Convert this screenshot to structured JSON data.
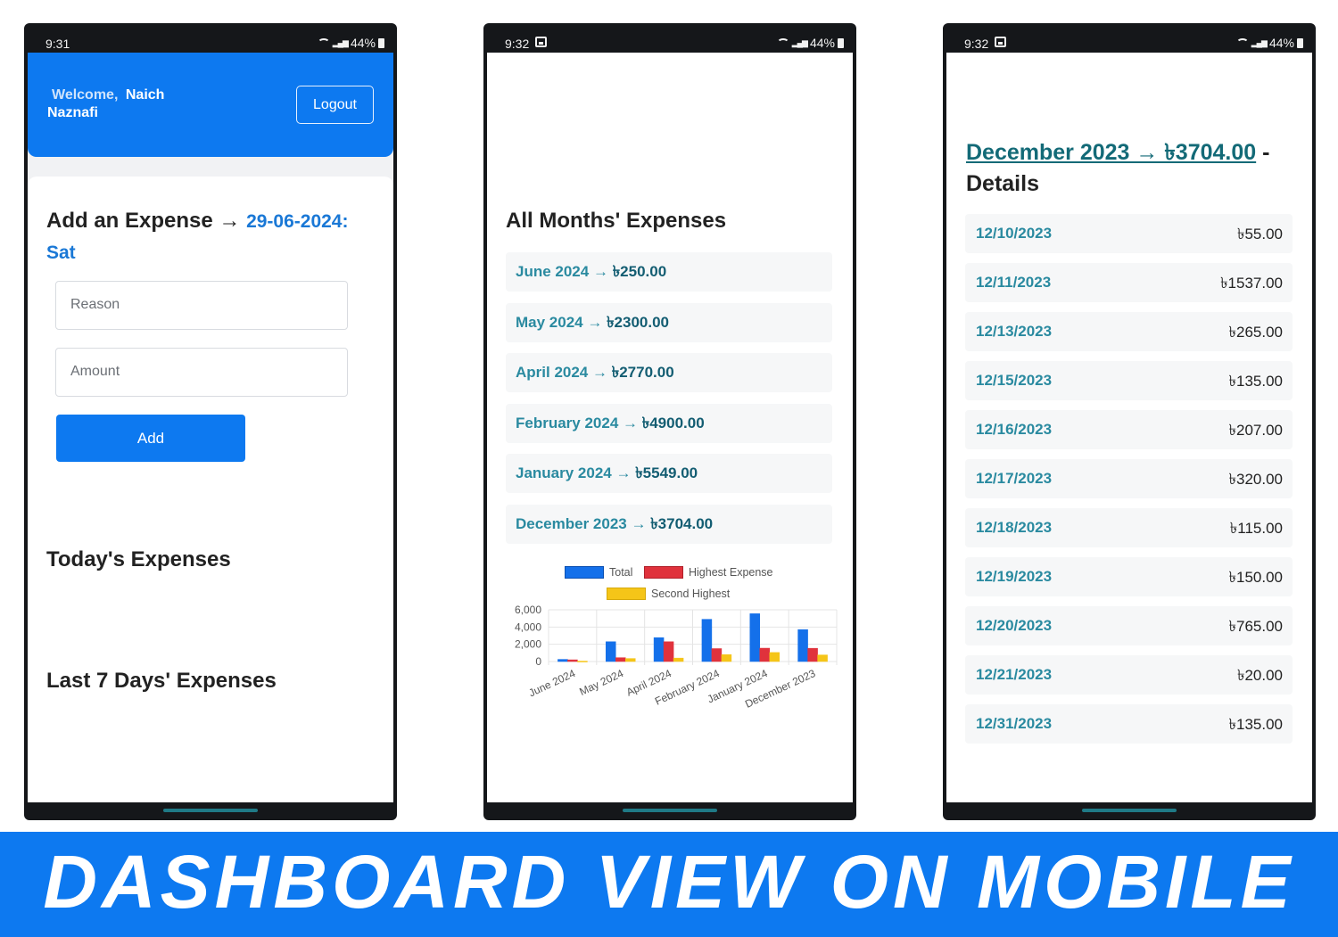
{
  "phone1": {
    "status": {
      "time": "9:31",
      "battery": "44%"
    },
    "header": {
      "welcome": "Welcome,",
      "name_line1": "Naich",
      "name_line2": "Naznafi",
      "logout_label": "Logout"
    },
    "add_expense": {
      "title": "Add an Expense →",
      "date": "29-06-2024: Sat",
      "reason_placeholder": "Reason",
      "amount_placeholder": "Amount",
      "add_label": "Add"
    },
    "today_title": "Today's Expenses",
    "last7_title": "Last 7 Days' Expenses"
  },
  "phone2": {
    "status": {
      "time": "9:32",
      "battery": "44%"
    },
    "title": "All Months' Expenses",
    "months": [
      {
        "month": "June 2024 →",
        "amount": "৳250.00"
      },
      {
        "month": "May 2024 →",
        "amount": "৳2300.00"
      },
      {
        "month": "April 2024 →",
        "amount": "৳2770.00"
      },
      {
        "month": "February 2024 →",
        "amount": "৳4900.00"
      },
      {
        "month": "January 2024 →",
        "amount": "৳5549.00"
      },
      {
        "month": "December 2023 →",
        "amount": "৳3704.00"
      }
    ]
  },
  "phone3": {
    "status": {
      "time": "9:32",
      "battery": "44%"
    },
    "title_link": "December 2023 → ৳3704.00",
    "title_suffix": " - Details",
    "details": [
      {
        "date": "12/10/2023",
        "amount": "৳55.00"
      },
      {
        "date": "12/11/2023",
        "amount": "৳1537.00"
      },
      {
        "date": "12/13/2023",
        "amount": "৳265.00"
      },
      {
        "date": "12/15/2023",
        "amount": "৳135.00"
      },
      {
        "date": "12/16/2023",
        "amount": "৳207.00"
      },
      {
        "date": "12/17/2023",
        "amount": "৳320.00"
      },
      {
        "date": "12/18/2023",
        "amount": "৳115.00"
      },
      {
        "date": "12/19/2023",
        "amount": "৳150.00"
      },
      {
        "date": "12/20/2023",
        "amount": "৳765.00"
      },
      {
        "date": "12/21/2023",
        "amount": "৳20.00"
      },
      {
        "date": "12/31/2023",
        "amount": "৳135.00"
      }
    ]
  },
  "chart_data": {
    "type": "bar",
    "categories": [
      "June 2024",
      "May 2024",
      "April 2024",
      "February 2024",
      "January 2024",
      "December 2023"
    ],
    "series": [
      {
        "name": "Total",
        "color": "#1470ea",
        "values": [
          250,
          2300,
          2770,
          4900,
          5549,
          3704
        ]
      },
      {
        "name": "Highest Expense",
        "color": "#e0323c",
        "values": [
          200,
          450,
          2300,
          1500,
          1550,
          1537
        ]
      },
      {
        "name": "Second Highest",
        "color": "#f5c518",
        "values": [
          50,
          350,
          400,
          800,
          1050,
          765
        ]
      }
    ],
    "y_ticks": [
      "6,000",
      "4,000",
      "2,000",
      "0"
    ],
    "ylim": [
      0,
      6000
    ],
    "legend_position": "top"
  },
  "banner": {
    "text": "DASHBOARD VIEW ON MOBILE"
  }
}
